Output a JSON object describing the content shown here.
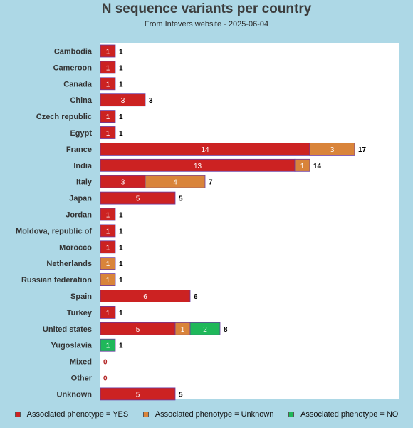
{
  "chart_data": {
    "type": "bar",
    "orientation": "horizontal",
    "stacked": true,
    "title": "N sequence variants per country",
    "subtitle": "From Infevers website - 2025-06-04",
    "categories": [
      "Cambodia",
      "Cameroon",
      "Canada",
      "China",
      "Czech republic",
      "Egypt",
      "France",
      "India",
      "Italy",
      "Japan",
      "Jordan",
      "Moldova, republic of",
      "Morocco",
      "Netherlands",
      "Russian federation",
      "Spain",
      "Turkey",
      "United states",
      "Yugoslavia",
      "Mixed",
      "Other",
      "Unknown"
    ],
    "series": [
      {
        "name": "Associated phenotype = YES",
        "color": "#cc2222",
        "values": [
          1,
          1,
          1,
          3,
          1,
          1,
          14,
          13,
          3,
          5,
          1,
          1,
          1,
          0,
          0,
          6,
          1,
          5,
          0,
          0,
          0,
          5
        ]
      },
      {
        "name": "Associated phenotype = Unknown",
        "color": "#d9843a",
        "values": [
          0,
          0,
          0,
          0,
          0,
          0,
          3,
          1,
          4,
          0,
          0,
          0,
          0,
          1,
          1,
          0,
          0,
          1,
          0,
          0,
          0,
          0
        ]
      },
      {
        "name": "Associated phenotype = NO",
        "color": "#1fb85a",
        "values": [
          0,
          0,
          0,
          0,
          0,
          0,
          0,
          0,
          0,
          0,
          0,
          0,
          0,
          0,
          0,
          0,
          0,
          2,
          1,
          0,
          0,
          0
        ]
      }
    ],
    "totals": [
      1,
      1,
      1,
      3,
      1,
      1,
      17,
      14,
      7,
      5,
      1,
      1,
      1,
      1,
      1,
      6,
      1,
      8,
      1,
      0,
      0,
      5
    ],
    "xlim": [
      0,
      20
    ],
    "grid": false,
    "legend_position": "bottom"
  }
}
